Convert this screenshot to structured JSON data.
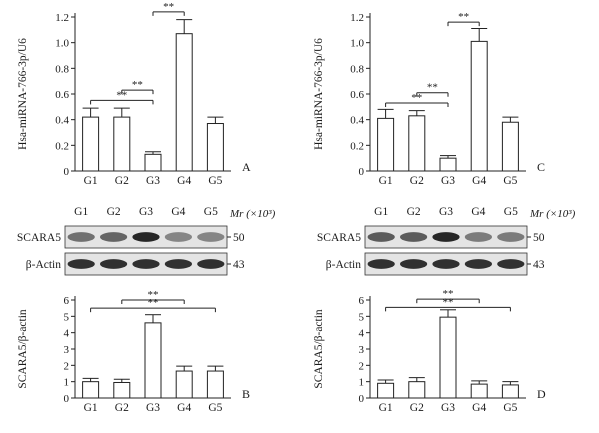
{
  "chart_data": [
    {
      "type": "bar",
      "panel_letter": "A",
      "categories": [
        "G1",
        "G2",
        "G3",
        "G4",
        "G5"
      ],
      "values": [
        0.42,
        0.42,
        0.13,
        1.07,
        0.37
      ],
      "errors": [
        0.07,
        0.07,
        0.02,
        0.11,
        0.05
      ],
      "ylabel": "Hsa-miRNA-766-3p/U6",
      "ylim": [
        0,
        1.2
      ],
      "yticks": [
        "0",
        "0.2",
        "0.4",
        "0.6",
        "0.8",
        "1.0",
        "1.2"
      ],
      "significance": [
        {
          "from": 0,
          "to": 2,
          "label": "**",
          "y": 0.55
        },
        {
          "from": 1,
          "to": 2,
          "label": "**",
          "y": 0.63
        },
        {
          "from": 2,
          "to": 3,
          "label": "**",
          "y": 1.24
        }
      ]
    },
    {
      "type": "bar",
      "panel_letter": "C",
      "categories": [
        "G1",
        "G2",
        "G3",
        "G4",
        "G5"
      ],
      "values": [
        0.41,
        0.43,
        0.1,
        1.01,
        0.38
      ],
      "errors": [
        0.07,
        0.04,
        0.02,
        0.1,
        0.04
      ],
      "ylabel": "Hsa-miRNA-766-3p/U6",
      "ylim": [
        0,
        1.2
      ],
      "yticks": [
        "0",
        "0.2",
        "0.4",
        "0.6",
        "0.8",
        "1.0",
        "1.2"
      ],
      "significance": [
        {
          "from": 0,
          "to": 2,
          "label": "**",
          "y": 0.53
        },
        {
          "from": 1,
          "to": 2,
          "label": "**",
          "y": 0.61
        },
        {
          "from": 2,
          "to": 3,
          "label": "**",
          "y": 1.16
        }
      ]
    },
    {
      "type": "bar",
      "panel_letter": "B",
      "categories": [
        "G1",
        "G2",
        "G3",
        "G4",
        "G5"
      ],
      "values": [
        1.0,
        0.95,
        4.6,
        1.65,
        1.65
      ],
      "errors": [
        0.2,
        0.2,
        0.5,
        0.3,
        0.3
      ],
      "ylabel": "SCARA5/β-actin",
      "ylim": [
        0,
        6
      ],
      "yticks": [
        "0",
        "1",
        "2",
        "3",
        "4",
        "5",
        "6"
      ],
      "significance": [
        {
          "from": 0,
          "to": 4,
          "label": "**",
          "y": 5.5
        },
        {
          "from": 1,
          "to": 3,
          "label": "**",
          "y": 6.0
        }
      ]
    },
    {
      "type": "bar",
      "panel_letter": "D",
      "categories": [
        "G1",
        "G2",
        "G3",
        "G4",
        "G5"
      ],
      "values": [
        0.9,
        1.0,
        4.95,
        0.85,
        0.8
      ],
      "errors": [
        0.2,
        0.25,
        0.45,
        0.2,
        0.2
      ],
      "ylabel": "SCARA5/β-actin",
      "ylim": [
        0,
        6
      ],
      "yticks": [
        "0",
        "1",
        "2",
        "3",
        "4",
        "5",
        "6"
      ],
      "significance": [
        {
          "from": 0,
          "to": 4,
          "label": "**",
          "y": 5.55
        },
        {
          "from": 1,
          "to": 3,
          "label": "**",
          "y": 6.05
        }
      ]
    }
  ],
  "western_blots": [
    {
      "lanes": [
        "G1",
        "G2",
        "G3",
        "G4",
        "G5"
      ],
      "mr_label": "Mr (×10³)",
      "rows": [
        {
          "label": "SCARA5",
          "mr": "50",
          "intensities": [
            0.55,
            0.6,
            0.9,
            0.45,
            0.45
          ]
        },
        {
          "label": "β-Actin",
          "mr": "43",
          "intensities": [
            0.85,
            0.85,
            0.85,
            0.85,
            0.85
          ]
        }
      ]
    },
    {
      "lanes": [
        "G1",
        "G2",
        "G3",
        "G4",
        "G5"
      ],
      "mr_label": "Mr (×10³)",
      "rows": [
        {
          "label": "SCARA5",
          "mr": "50",
          "intensities": [
            0.65,
            0.65,
            0.9,
            0.5,
            0.5
          ]
        },
        {
          "label": "β-Actin",
          "mr": "43",
          "intensities": [
            0.85,
            0.85,
            0.85,
            0.85,
            0.85
          ]
        }
      ]
    }
  ]
}
